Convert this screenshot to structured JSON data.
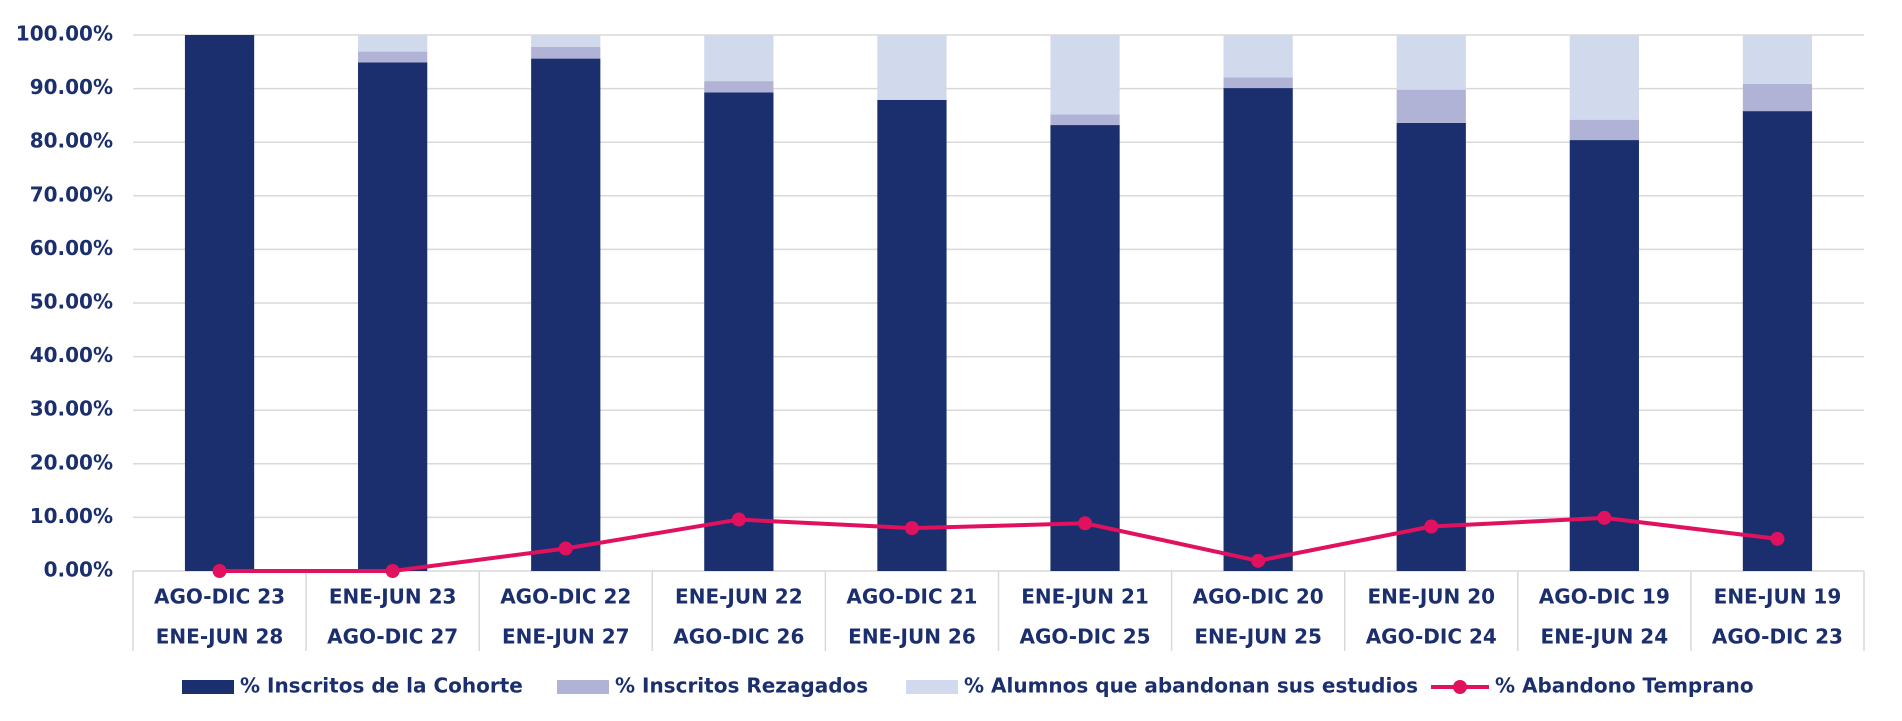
{
  "chart_data": {
    "type": "bar",
    "stacked": true,
    "categories": [
      [
        "AGO-DIC 23",
        "ENE-JUN 28"
      ],
      [
        "ENE-JUN 23",
        "AGO-DIC 27"
      ],
      [
        "AGO-DIC 22",
        "ENE-JUN 27"
      ],
      [
        "ENE-JUN 22",
        "AGO-DIC 26"
      ],
      [
        "AGO-DIC 21",
        "ENE-JUN 26"
      ],
      [
        "ENE-JUN 21",
        "AGO-DIC 25"
      ],
      [
        "AGO-DIC 20",
        "ENE-JUN 25"
      ],
      [
        "ENE-JUN 20",
        "AGO-DIC 24"
      ],
      [
        "AGO-DIC 19",
        "ENE-JUN 24"
      ],
      [
        "ENE-JUN 19",
        "AGO-DIC 23"
      ]
    ],
    "series": [
      {
        "name": "% Inscritos de la Cohorte",
        "type": "bar",
        "color": "#1b2f6e",
        "values": [
          100,
          94.9,
          95.6,
          89.3,
          87.9,
          83.2,
          90.1,
          83.6,
          80.4,
          85.8
        ]
      },
      {
        "name": "% Inscritos Rezagados",
        "type": "bar",
        "color": "#b0b3d5",
        "values": [
          0,
          2.0,
          2.2,
          2.1,
          0,
          2.0,
          2.0,
          6.2,
          3.8,
          5.1
        ]
      },
      {
        "name": "% Alumnos que abandonan sus estudios",
        "type": "bar",
        "color": "#d1d9ec",
        "values": [
          0,
          3.1,
          2.2,
          8.6,
          12.1,
          14.8,
          7.9,
          10.2,
          15.8,
          9.1
        ]
      },
      {
        "name": "% Abandono Temprano",
        "type": "line",
        "color": "#e0115f",
        "values": [
          0,
          0,
          4.2,
          9.6,
          8.0,
          8.9,
          1.9,
          8.3,
          9.9,
          6.0
        ]
      }
    ],
    "ylim": [
      0,
      100
    ],
    "yticks": [
      {
        "value": 0,
        "label": "0.00%"
      },
      {
        "value": 10,
        "label": "10.00%"
      },
      {
        "value": 20,
        "label": "20.00%"
      },
      {
        "value": 30,
        "label": "30.00%"
      },
      {
        "value": 40,
        "label": "40.00%"
      },
      {
        "value": 50,
        "label": "50.00%"
      },
      {
        "value": 60,
        "label": "60.00%"
      },
      {
        "value": 70,
        "label": "70.00%"
      },
      {
        "value": 80,
        "label": "80.00%"
      },
      {
        "value": 90,
        "label": "90.00%"
      },
      {
        "value": 100,
        "label": "100.00%"
      }
    ],
    "grid": true,
    "legend": "bottom"
  }
}
